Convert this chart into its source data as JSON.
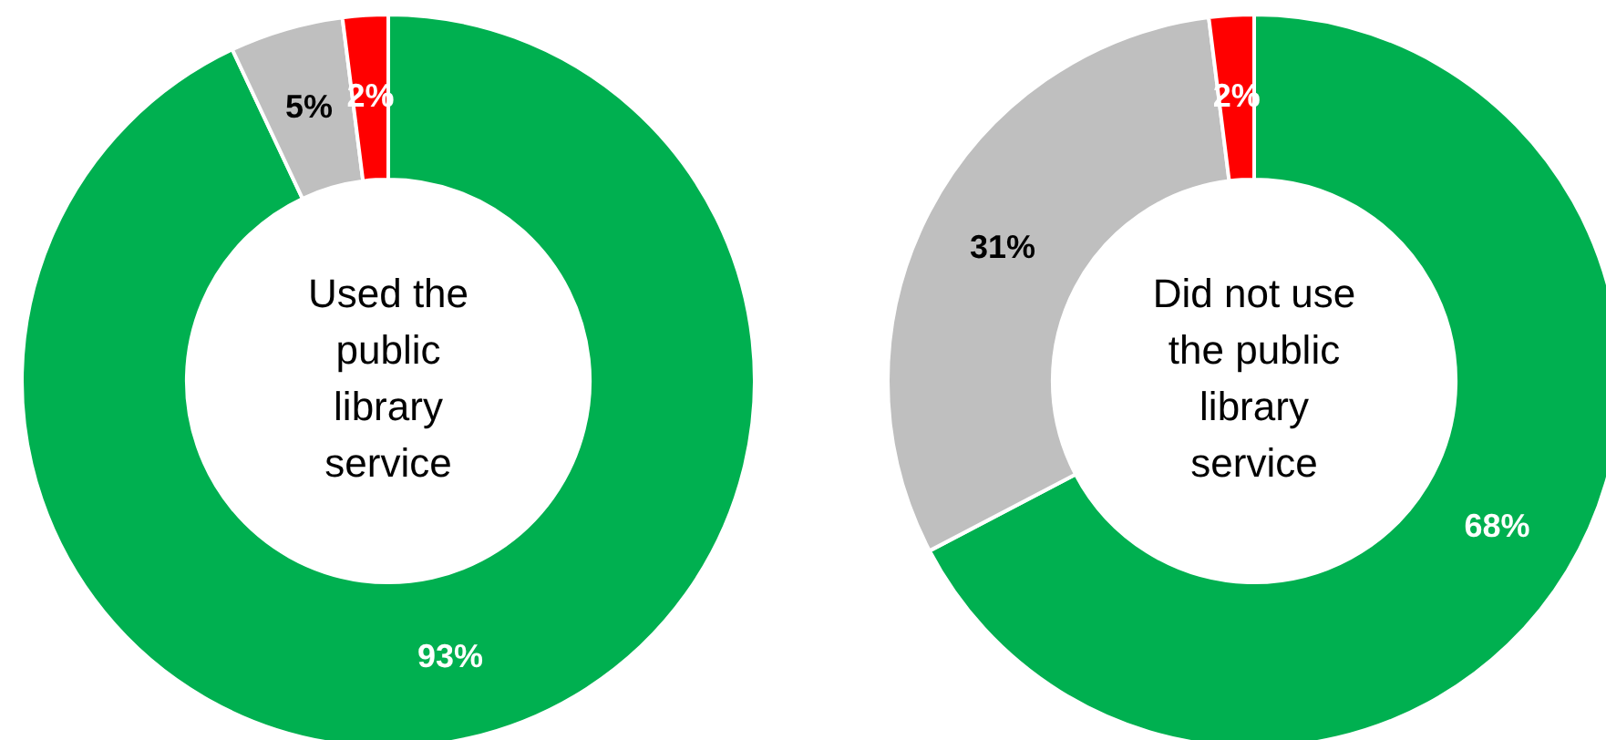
{
  "chart_data": [
    {
      "type": "donut",
      "title": "Used the public library service",
      "categories": [
        null,
        null,
        null
      ],
      "values": [
        93,
        5,
        2
      ],
      "value_labels": [
        "93%",
        "5%",
        "2%"
      ],
      "colors": [
        "#00b050",
        "#bfbfbf",
        "#ff0000"
      ],
      "legend": false
    },
    {
      "type": "donut",
      "title": "Did not use the public library service",
      "categories": [
        null,
        null,
        null
      ],
      "values": [
        68,
        31,
        2
      ],
      "value_labels": [
        "68%",
        "31%",
        "2%"
      ],
      "colors": [
        "#00b050",
        "#bfbfbf",
        "#ff0000"
      ],
      "legend": false
    }
  ]
}
